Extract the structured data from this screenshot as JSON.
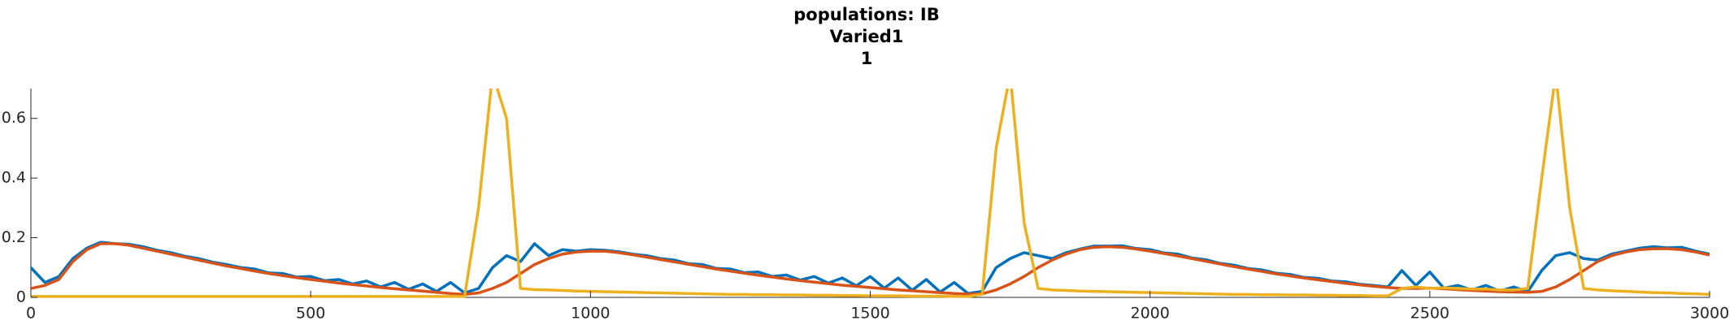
{
  "chart_data": {
    "type": "line",
    "title": [
      "populations: IB",
      "Varied1",
      "1"
    ],
    "x": [
      0,
      25,
      50,
      75,
      100,
      125,
      150,
      175,
      200,
      225,
      250,
      275,
      300,
      325,
      350,
      375,
      400,
      425,
      450,
      475,
      500,
      525,
      550,
      575,
      600,
      625,
      650,
      675,
      700,
      725,
      750,
      775,
      800,
      825,
      850,
      875,
      900,
      925,
      950,
      975,
      1000,
      1025,
      1050,
      1075,
      1100,
      1125,
      1150,
      1175,
      1200,
      1225,
      1250,
      1275,
      1300,
      1325,
      1350,
      1375,
      1400,
      1425,
      1450,
      1475,
      1500,
      1525,
      1550,
      1575,
      1600,
      1625,
      1650,
      1675,
      1700,
      1725,
      1750,
      1775,
      1800,
      1825,
      1850,
      1875,
      1900,
      1925,
      1950,
      1975,
      2000,
      2025,
      2050,
      2075,
      2100,
      2125,
      2150,
      2175,
      2200,
      2225,
      2250,
      2275,
      2300,
      2325,
      2350,
      2375,
      2400,
      2425,
      2450,
      2475,
      2500,
      2525,
      2550,
      2575,
      2600,
      2625,
      2650,
      2675,
      2700,
      2725,
      2750,
      2775,
      2800,
      2825,
      2850,
      2875,
      2900,
      2925,
      2950,
      2975,
      3000
    ],
    "series": [
      {
        "color": "#0072BD",
        "values": [
          0.1,
          0.05,
          0.07,
          0.13,
          0.165,
          0.185,
          0.18,
          0.178,
          0.17,
          0.158,
          0.15,
          0.138,
          0.13,
          0.118,
          0.11,
          0.1,
          0.095,
          0.082,
          0.08,
          0.068,
          0.07,
          0.056,
          0.06,
          0.045,
          0.055,
          0.035,
          0.05,
          0.027,
          0.045,
          0.02,
          0.05,
          0.015,
          0.03,
          0.1,
          0.14,
          0.12,
          0.18,
          0.14,
          0.16,
          0.155,
          0.16,
          0.158,
          0.153,
          0.145,
          0.14,
          0.13,
          0.125,
          0.113,
          0.11,
          0.097,
          0.095,
          0.083,
          0.085,
          0.07,
          0.075,
          0.058,
          0.07,
          0.048,
          0.065,
          0.039,
          0.07,
          0.031,
          0.065,
          0.024,
          0.06,
          0.018,
          0.05,
          0.013,
          0.02,
          0.1,
          0.13,
          0.15,
          0.14,
          0.13,
          0.15,
          0.162,
          0.172,
          0.172,
          0.173,
          0.164,
          0.16,
          0.149,
          0.145,
          0.132,
          0.126,
          0.114,
          0.108,
          0.097,
          0.092,
          0.081,
          0.077,
          0.067,
          0.064,
          0.055,
          0.052,
          0.044,
          0.04,
          0.035,
          0.09,
          0.04,
          0.085,
          0.031,
          0.04,
          0.025,
          0.04,
          0.021,
          0.035,
          0.019,
          0.09,
          0.14,
          0.15,
          0.13,
          0.125,
          0.145,
          0.155,
          0.165,
          0.17,
          0.166,
          0.168,
          0.155,
          0.145
        ]
      },
      {
        "color": "#D95319",
        "values": [
          0.03,
          0.04,
          0.06,
          0.12,
          0.16,
          0.18,
          0.18,
          0.175,
          0.165,
          0.155,
          0.145,
          0.135,
          0.125,
          0.115,
          0.105,
          0.097,
          0.088,
          0.08,
          0.073,
          0.066,
          0.06,
          0.054,
          0.048,
          0.043,
          0.038,
          0.033,
          0.029,
          0.025,
          0.021,
          0.017,
          0.013,
          0.01,
          0.015,
          0.03,
          0.05,
          0.08,
          0.11,
          0.13,
          0.145,
          0.152,
          0.155,
          0.155,
          0.15,
          0.143,
          0.135,
          0.127,
          0.119,
          0.111,
          0.103,
          0.095,
          0.088,
          0.081,
          0.074,
          0.068,
          0.062,
          0.056,
          0.051,
          0.046,
          0.041,
          0.037,
          0.033,
          0.029,
          0.025,
          0.022,
          0.019,
          0.016,
          0.013,
          0.011,
          0.012,
          0.025,
          0.045,
          0.07,
          0.1,
          0.125,
          0.145,
          0.16,
          0.168,
          0.17,
          0.168,
          0.162,
          0.155,
          0.147,
          0.139,
          0.13,
          0.121,
          0.112,
          0.103,
          0.095,
          0.087,
          0.079,
          0.072,
          0.065,
          0.059,
          0.053,
          0.047,
          0.042,
          0.037,
          0.033,
          0.03,
          0.03,
          0.031,
          0.029,
          0.026,
          0.023,
          0.021,
          0.019,
          0.018,
          0.017,
          0.02,
          0.035,
          0.06,
          0.09,
          0.12,
          0.14,
          0.152,
          0.16,
          0.163,
          0.163,
          0.16,
          0.152,
          0.142
        ]
      },
      {
        "color": "#EDB120",
        "values": [
          0.003,
          0.003,
          0.003,
          0.003,
          0.003,
          0.003,
          0.003,
          0.003,
          0.003,
          0.003,
          0.003,
          0.003,
          0.003,
          0.003,
          0.003,
          0.003,
          0.003,
          0.003,
          0.003,
          0.003,
          0.003,
          0.003,
          0.003,
          0.003,
          0.003,
          0.003,
          0.003,
          0.003,
          0.003,
          0.003,
          0.003,
          0.003,
          0.3,
          0.75,
          0.6,
          0.03,
          0.026,
          0.025,
          0.023,
          0.021,
          0.02,
          0.019,
          0.018,
          0.017,
          0.016,
          0.015,
          0.014,
          0.013,
          0.012,
          0.011,
          0.01,
          0.01,
          0.009,
          0.009,
          0.008,
          0.008,
          0.007,
          0.007,
          0.006,
          0.006,
          0.005,
          0.005,
          0.005,
          0.004,
          0.004,
          0.004,
          0.003,
          0.003,
          0.01,
          0.5,
          0.75,
          0.25,
          0.03,
          0.025,
          0.023,
          0.021,
          0.02,
          0.019,
          0.018,
          0.017,
          0.016,
          0.015,
          0.014,
          0.013,
          0.012,
          0.011,
          0.01,
          0.01,
          0.009,
          0.009,
          0.008,
          0.008,
          0.007,
          0.007,
          0.006,
          0.006,
          0.005,
          0.005,
          0.03,
          0.035,
          0.03,
          0.032,
          0.03,
          0.028,
          0.028,
          0.025,
          0.025,
          0.03,
          0.4,
          0.75,
          0.3,
          0.03,
          0.025,
          0.022,
          0.02,
          0.018,
          0.016,
          0.015,
          0.013,
          0.012,
          0.01
        ]
      }
    ],
    "xlim": [
      0,
      3000
    ],
    "xticks": [
      0,
      500,
      1000,
      1500,
      2000,
      2500,
      3000
    ],
    "ylim": [
      0,
      0.7
    ],
    "yticks": [
      0,
      0.2,
      0.4,
      0.6
    ]
  }
}
